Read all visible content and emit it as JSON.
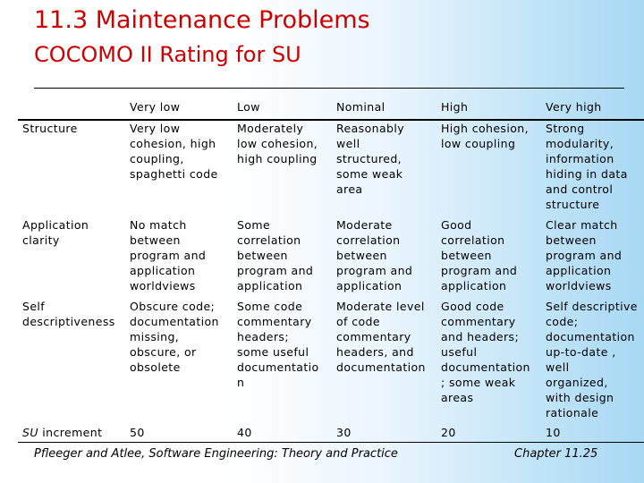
{
  "slide": {
    "title": "11.3 Maintenance Problems",
    "subtitle": "COCOMO II Rating for SU"
  },
  "table": {
    "headers": [
      "",
      "Very low",
      "Low",
      "Nominal",
      "High",
      "Very high"
    ],
    "rows": [
      {
        "label": "Structure",
        "cells": [
          "Very low\ncohesion, high\ncoupling,\nspaghetti code",
          "Moderately\nlow cohesion,\nhigh coupling",
          "Reasonably\nwell\nstructured,\nsome weak\narea",
          "High cohesion,\nlow coupling",
          "Strong\nmodularity,\ninformation\nhiding in data\nand control\nstructure"
        ]
      },
      {
        "label": "Application\nclarity",
        "cells": [
          "No match\nbetween\nprogram and\napplication\nworldviews",
          "Some\ncorrelation\nbetween\nprogram and\napplication",
          "Moderate\ncorrelation\nbetween\nprogram and\napplication",
          "Good\ncorrelation\nbetween\nprogram and\napplication",
          "Clear match\nbetween\nprogram and\napplication\nworldviews"
        ]
      },
      {
        "label": "Self\ndescriptiveness",
        "cells": [
          "Obscure code;\ndocumentation\nmissing,\nobscure, or\nobsolete",
          "Some code\ncommentary\nheaders;\nsome useful\ndocumentatio\nn",
          "Moderate level\nof code\ncommentary\nheaders, and\ndocumentation",
          "Good code\ncommentary\nand headers;\nuseful\ndocumentation\n; some weak\nareas",
          "Self descriptive\ncode;\ndocumentation\nup-to-date ,\nwell\norganized,\nwith design\nrationale"
        ]
      },
      {
        "label_italic": "SU",
        "label_rest": " increment",
        "cells": [
          "50",
          "40",
          "30",
          "20",
          "10"
        ]
      }
    ]
  },
  "footer": {
    "left": "Pfleeger and Atlee, Software Engineering: Theory and Practice",
    "right": "Chapter 11.25"
  }
}
